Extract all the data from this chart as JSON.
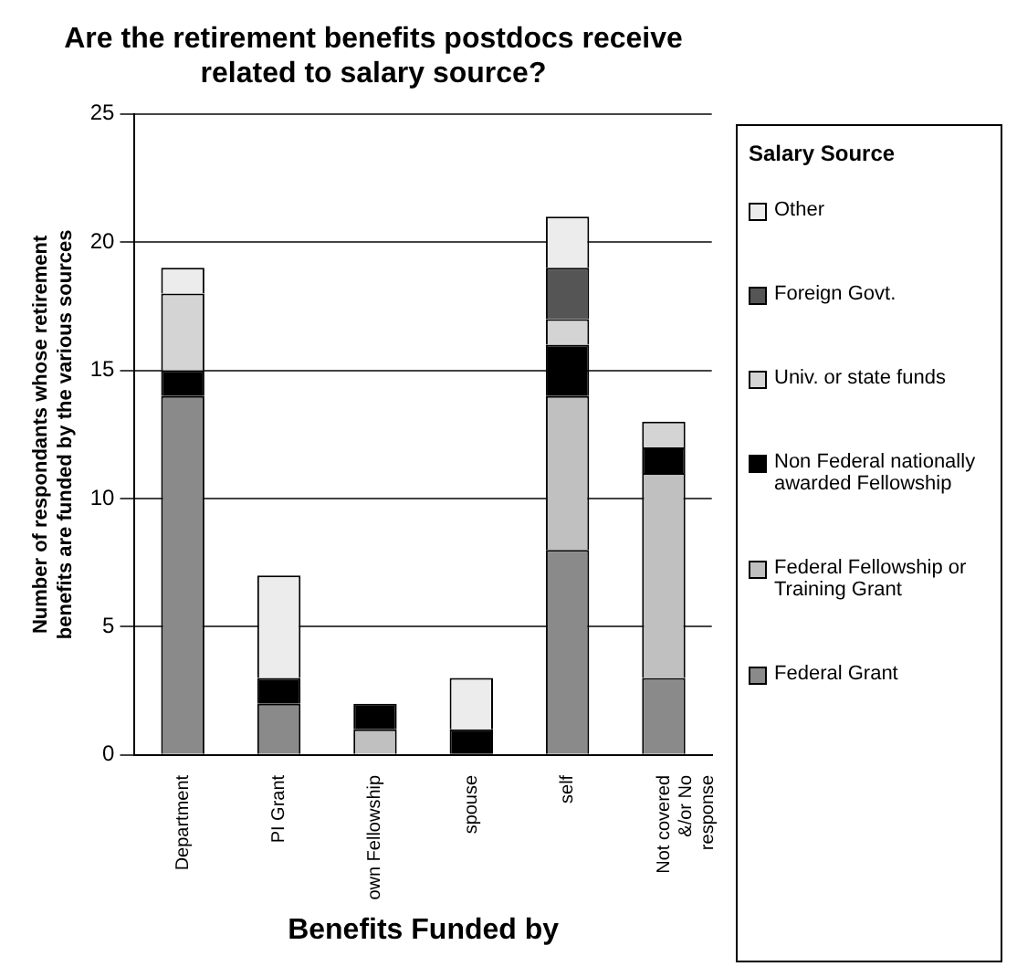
{
  "chart_data": {
    "type": "bar",
    "title": "Are the retirement benefits postdocs receive related to salary source?",
    "xlabel": "Benefits Funded by",
    "ylabel": "Number of respondants whose retirement benefits are funded by the various sources",
    "legend_title": "Salary Source",
    "categories": [
      "Department",
      "PI Grant",
      "own Fellowship",
      "spouse",
      "self",
      "Not covered &/or No response"
    ],
    "stacked": true,
    "series": [
      {
        "name": "Federal Grant",
        "color": "#8a8a8a",
        "values": [
          14,
          2,
          0,
          0,
          8,
          3
        ]
      },
      {
        "name": "Federal Fellowship or Training Grant",
        "color": "#c0c0c0",
        "values": [
          0,
          0,
          1,
          0,
          6,
          8
        ]
      },
      {
        "name": "Non Federal nationally awarded Fellowship",
        "color": "#000000",
        "values": [
          1,
          1,
          1,
          1,
          2,
          1
        ]
      },
      {
        "name": "Univ. or state funds",
        "color": "#d4d4d4",
        "values": [
          3,
          0,
          0,
          0,
          1,
          1
        ]
      },
      {
        "name": "Foreign Govt.",
        "color": "#555555",
        "values": [
          0,
          0,
          0,
          0,
          2,
          0
        ]
      },
      {
        "name": "Other",
        "color": "#ececec",
        "values": [
          1,
          4,
          0,
          2,
          2,
          0
        ]
      }
    ],
    "ylim": [
      0,
      25
    ],
    "yticks": [
      0,
      5,
      10,
      15,
      20,
      25
    ],
    "grid": "y",
    "legend": "right"
  }
}
